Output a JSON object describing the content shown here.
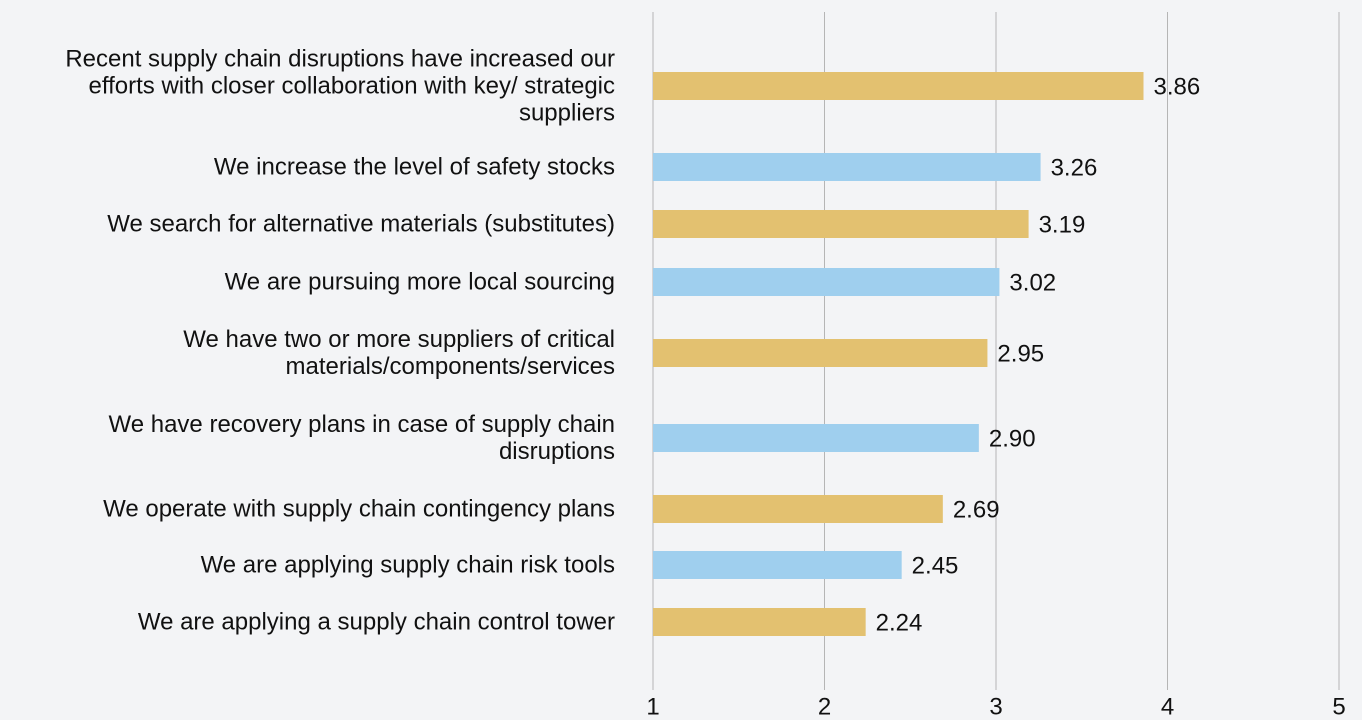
{
  "chart_data": {
    "type": "barh",
    "categories": [
      "Recent supply chain disruptions have increased our efforts with closer collaboration with key/ strategic suppliers",
      "We increase the level of safety stocks",
      "We search for alternative materials (substitutes)",
      "We are pursuing more local sourcing",
      "We have two or more suppliers of critical materials/components/services",
      "We have recovery plans in case of supply chain disruptions",
      "We operate with supply chain contingency plans",
      "We are applying supply chain risk tools",
      "We are applying a supply chain control tower"
    ],
    "values": [
      3.86,
      3.26,
      3.19,
      3.02,
      2.95,
      2.9,
      2.69,
      2.45,
      2.24
    ],
    "value_labels": [
      "3.86",
      "3.26",
      "3.19",
      "3.02",
      "2.95",
      "2.90",
      "2.69",
      "2.45",
      "2.24"
    ],
    "colors": [
      "#e3c170",
      "#9fcfee",
      "#e3c170",
      "#9fcfee",
      "#e3c170",
      "#9fcfee",
      "#e3c170",
      "#9fcfee",
      "#e3c170"
    ],
    "xlim": [
      1,
      5
    ],
    "xticks": [
      1,
      2,
      3,
      4,
      5
    ],
    "grid": true
  }
}
